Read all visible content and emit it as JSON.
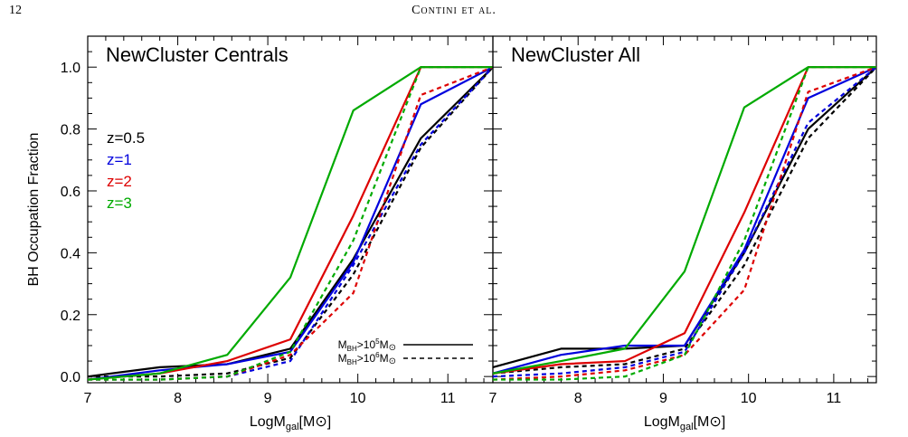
{
  "page": {
    "number": "12",
    "running_head": "Contini et al."
  },
  "figure": {
    "y_axis_label": "BH Occupation Fraction",
    "x_axis_label": {
      "base": "LogM",
      "sub": "gal",
      "unit_open": "[M",
      "unit_close": "]"
    },
    "redshift_legend": [
      {
        "label": "z=0.5",
        "color": "#000000"
      },
      {
        "label": "z=1",
        "color": "#0000dd"
      },
      {
        "label": "z=2",
        "color": "#dd0000"
      },
      {
        "label": "z=3",
        "color": "#00aa00"
      }
    ],
    "linestyle_legend": [
      {
        "label_base": "M",
        "label_sub": "BH",
        "label_rest": ">10",
        "exponent": "5",
        "unit": "M",
        "style": "solid"
      },
      {
        "label_base": "M",
        "label_sub": "BH",
        "label_rest": ">10",
        "exponent": "6",
        "unit": "M",
        "style": "dashed"
      }
    ]
  },
  "chart_data": [
    {
      "type": "line",
      "title": "NewCluster Centrals",
      "xlim": [
        7,
        11.5
      ],
      "ylim": [
        -0.02,
        1.1
      ],
      "xticks": [
        "7",
        "8",
        "9",
        "10",
        "11"
      ],
      "yticks": [
        "0.0",
        "0.2",
        "0.4",
        "0.6",
        "0.8",
        "1.0"
      ],
      "x": [
        7.0,
        7.8,
        8.55,
        9.25,
        9.95,
        10.7,
        11.5
      ],
      "series": [
        {
          "name": "z=0.5",
          "color": "#000000",
          "style": "solid",
          "values": [
            0.0,
            0.03,
            0.04,
            0.09,
            0.38,
            0.77,
            1.0
          ]
        },
        {
          "name": "z=0.5",
          "color": "#000000",
          "style": "dashed",
          "values": [
            0.0,
            0.0,
            0.01,
            0.06,
            0.33,
            0.74,
            1.0
          ]
        },
        {
          "name": "z=1",
          "color": "#0000dd",
          "style": "solid",
          "values": [
            -0.01,
            0.02,
            0.04,
            0.08,
            0.37,
            0.88,
            1.0
          ]
        },
        {
          "name": "z=1",
          "color": "#0000dd",
          "style": "dashed",
          "values": [
            -0.01,
            -0.01,
            0.0,
            0.05,
            0.36,
            0.75,
            1.0
          ]
        },
        {
          "name": "z=2",
          "color": "#dd0000",
          "style": "solid",
          "values": [
            -0.01,
            0.01,
            0.05,
            0.12,
            0.52,
            1.0,
            1.0
          ]
        },
        {
          "name": "z=2",
          "color": "#dd0000",
          "style": "dashed",
          "values": [
            -0.01,
            -0.01,
            0.0,
            0.07,
            0.27,
            0.91,
            1.0
          ]
        },
        {
          "name": "z=3",
          "color": "#00aa00",
          "style": "solid",
          "values": [
            -0.01,
            0.01,
            0.07,
            0.32,
            0.86,
            1.0,
            1.0
          ]
        },
        {
          "name": "z=3",
          "color": "#00aa00",
          "style": "dashed",
          "values": [
            -0.01,
            -0.01,
            0.0,
            0.08,
            0.44,
            1.0,
            1.0
          ]
        }
      ]
    },
    {
      "type": "line",
      "title": "NewCluster All",
      "xlim": [
        7,
        11.5
      ],
      "ylim": [
        -0.02,
        1.1
      ],
      "xticks": [
        "7",
        "8",
        "9",
        "10",
        "11"
      ],
      "yticks": [],
      "x": [
        7.0,
        7.8,
        8.55,
        9.25,
        9.95,
        10.7,
        11.5
      ],
      "series": [
        {
          "name": "z=0.5",
          "color": "#000000",
          "style": "solid",
          "values": [
            0.03,
            0.09,
            0.09,
            0.1,
            0.4,
            0.8,
            1.0
          ]
        },
        {
          "name": "z=0.5",
          "color": "#000000",
          "style": "dashed",
          "values": [
            0.01,
            0.03,
            0.04,
            0.09,
            0.36,
            0.77,
            1.0
          ]
        },
        {
          "name": "z=1",
          "color": "#0000dd",
          "style": "solid",
          "values": [
            0.01,
            0.07,
            0.1,
            0.1,
            0.41,
            0.9,
            1.0
          ]
        },
        {
          "name": "z=1",
          "color": "#0000dd",
          "style": "dashed",
          "values": [
            0.0,
            0.01,
            0.03,
            0.08,
            0.4,
            0.82,
            1.0
          ]
        },
        {
          "name": "z=2",
          "color": "#dd0000",
          "style": "solid",
          "values": [
            0.01,
            0.04,
            0.05,
            0.14,
            0.53,
            1.0,
            1.0
          ]
        },
        {
          "name": "z=2",
          "color": "#dd0000",
          "style": "dashed",
          "values": [
            -0.01,
            0.0,
            0.02,
            0.07,
            0.28,
            0.92,
            1.0
          ]
        },
        {
          "name": "z=3",
          "color": "#00aa00",
          "style": "solid",
          "values": [
            0.01,
            0.05,
            0.09,
            0.34,
            0.87,
            1.0,
            1.0
          ]
        },
        {
          "name": "z=3",
          "color": "#00aa00",
          "style": "dashed",
          "values": [
            -0.01,
            -0.01,
            0.0,
            0.07,
            0.44,
            1.0,
            1.0
          ]
        }
      ]
    }
  ]
}
